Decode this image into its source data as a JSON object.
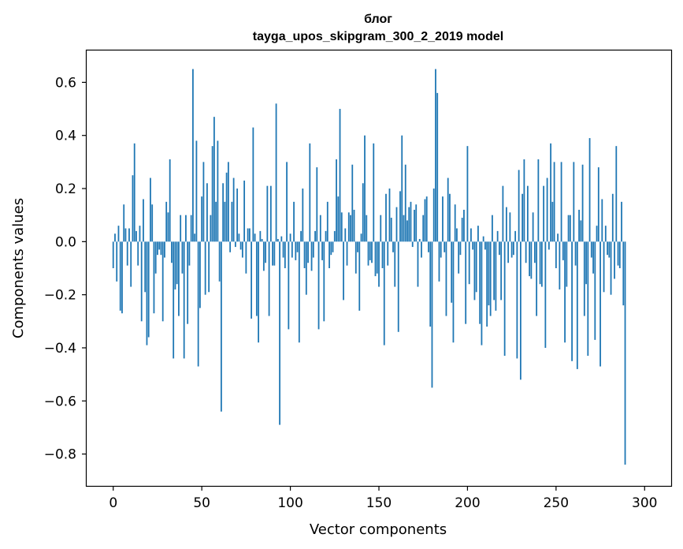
{
  "chart_data": {
    "type": "bar",
    "title": "блог",
    "subtitle": "tayga_upos_skipgram_300_2_2019 model",
    "xlabel": "Vector components",
    "ylabel": "Components values",
    "xlim": [
      -15,
      315
    ],
    "ylim": [
      -0.92,
      0.72
    ],
    "xticks": [
      0,
      50,
      100,
      150,
      200,
      250,
      300
    ],
    "xtick_labels": [
      "0",
      "50",
      "100",
      "150",
      "200",
      "250",
      "300"
    ],
    "yticks": [
      -0.8,
      -0.6,
      -0.4,
      -0.2,
      0.0,
      0.2,
      0.4,
      0.6
    ],
    "ytick_labels": [
      "−0.8",
      "−0.6",
      "−0.4",
      "−0.2",
      "0.0",
      "0.2",
      "0.4",
      "0.6"
    ],
    "bar_color": "#1f77b4",
    "values": [
      -0.1,
      0.03,
      -0.15,
      0.06,
      -0.26,
      -0.27,
      0.14,
      0.05,
      -0.09,
      0.05,
      -0.17,
      0.25,
      0.37,
      0.04,
      -0.09,
      0.06,
      -0.3,
      0.16,
      -0.19,
      -0.39,
      -0.36,
      0.24,
      0.14,
      -0.27,
      -0.12,
      -0.05,
      -0.03,
      -0.05,
      -0.3,
      -0.06,
      0.15,
      0.11,
      0.31,
      -0.08,
      -0.44,
      -0.18,
      -0.16,
      -0.28,
      0.1,
      -0.12,
      -0.44,
      0.1,
      -0.31,
      -0.09,
      0.1,
      0.65,
      0.03,
      0.38,
      -0.47,
      -0.25,
      0.17,
      0.3,
      -0.2,
      0.22,
      -0.19,
      0.1,
      0.36,
      0.47,
      0.15,
      0.38,
      -0.15,
      -0.64,
      0.22,
      0.15,
      0.26,
      0.3,
      -0.04,
      0.15,
      0.24,
      -0.02,
      0.2,
      0.03,
      -0.03,
      -0.06,
      0.23,
      -0.12,
      0.05,
      0.05,
      -0.29,
      0.43,
      0.03,
      -0.28,
      -0.38,
      0.04,
      0.01,
      -0.11,
      -0.08,
      0.21,
      -0.28,
      0.21,
      -0.09,
      -0.09,
      0.52,
      0.01,
      -0.69,
      0.02,
      -0.06,
      -0.1,
      0.3,
      -0.33,
      0.03,
      -0.06,
      0.15,
      -0.07,
      -0.04,
      -0.38,
      0.04,
      0.2,
      -0.1,
      -0.2,
      -0.08,
      0.37,
      -0.11,
      -0.06,
      0.04,
      0.28,
      -0.33,
      0.1,
      -0.07,
      -0.3,
      0.04,
      0.15,
      -0.1,
      -0.05,
      -0.04,
      0.04,
      0.31,
      0.17,
      0.5,
      0.11,
      -0.22,
      0.05,
      -0.09,
      0.11,
      0.1,
      0.29,
      0.12,
      -0.12,
      -0.04,
      -0.26,
      0.03,
      0.22,
      0.4,
      0.1,
      -0.09,
      -0.07,
      -0.08,
      0.37,
      -0.13,
      -0.12,
      -0.17,
      0.1,
      -0.1,
      -0.39,
      0.18,
      -0.09,
      0.2,
      0.09,
      -0.04,
      -0.17,
      0.13,
      -0.34,
      0.19,
      0.4,
      0.1,
      0.29,
      0.08,
      0.13,
      0.15,
      -0.02,
      0.12,
      0.14,
      -0.17,
      0.01,
      -0.06,
      0.1,
      0.16,
      0.17,
      -0.04,
      -0.32,
      -0.55,
      0.2,
      0.65,
      0.56,
      -0.15,
      -0.06,
      0.17,
      -0.04,
      -0.28,
      0.24,
      0.18,
      -0.23,
      -0.38,
      0.14,
      0.05,
      -0.12,
      -0.05,
      0.09,
      0.12,
      -0.31,
      0.36,
      -0.16,
      0.05,
      -0.03,
      -0.22,
      -0.19,
      0.06,
      -0.31,
      -0.39,
      0.02,
      -0.03,
      -0.32,
      -0.24,
      -0.28,
      0.1,
      -0.22,
      -0.26,
      0.04,
      -0.05,
      -0.22,
      0.21,
      -0.43,
      0.13,
      -0.08,
      0.11,
      -0.06,
      -0.05,
      0.04,
      -0.44,
      0.27,
      -0.52,
      0.18,
      0.31,
      -0.08,
      0.21,
      -0.13,
      -0.14,
      0.11,
      -0.08,
      -0.28,
      0.31,
      -0.16,
      -0.17,
      0.21,
      -0.4,
      0.24,
      -0.03,
      0.37,
      0.15,
      0.3,
      -0.1,
      0.03,
      -0.18,
      0.3,
      -0.07,
      -0.38,
      -0.17,
      0.1,
      0.1,
      -0.45,
      0.3,
      -0.09,
      -0.48,
      0.12,
      0.08,
      0.29,
      -0.28,
      -0.16,
      -0.43,
      0.39,
      -0.06,
      -0.12,
      -0.37,
      0.06,
      0.28,
      -0.47,
      0.16,
      -0.19,
      0.06,
      -0.05,
      -0.06,
      -0.2,
      0.18,
      -0.14,
      0.36,
      -0.09,
      -0.1,
      0.15,
      -0.24,
      -0.84
    ]
  }
}
